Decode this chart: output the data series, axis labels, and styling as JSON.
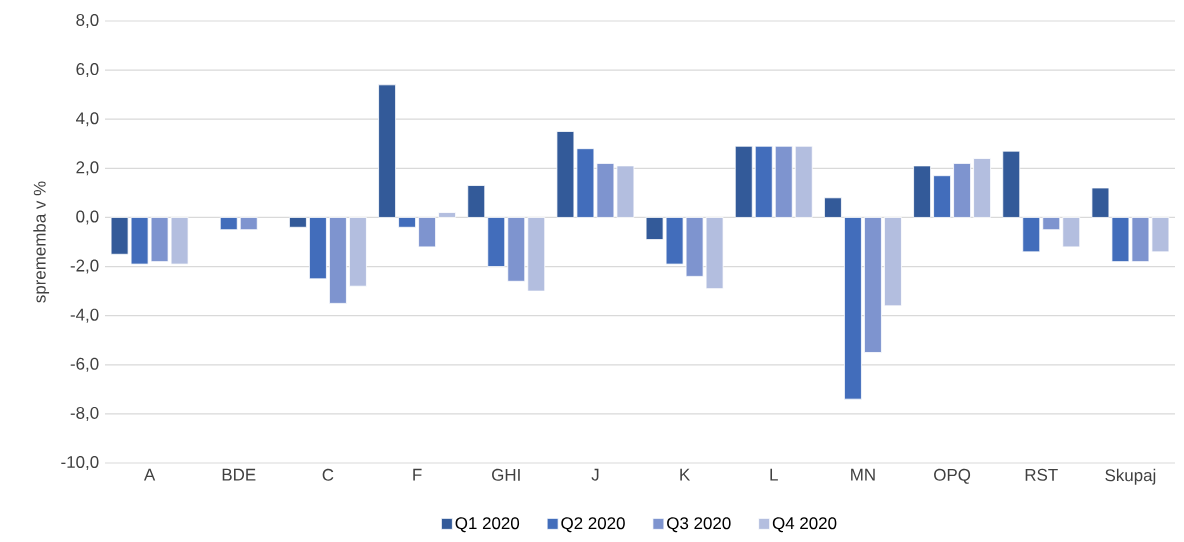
{
  "chart_data": {
    "type": "bar",
    "ylabel": "sprememba v %",
    "categories": [
      "A",
      "BDE",
      "C",
      "F",
      "GHI",
      "J",
      "K",
      "L",
      "MN",
      "OPQ",
      "RST",
      "Skupaj"
    ],
    "series": [
      {
        "name": "Q1 2020",
        "color": "#335a99",
        "values": [
          -1.5,
          null,
          -0.4,
          5.4,
          1.3,
          3.5,
          -0.9,
          2.9,
          0.8,
          2.1,
          2.7,
          1.2
        ]
      },
      {
        "name": "Q2 2020",
        "color": "#426dbb",
        "values": [
          -1.9,
          -0.5,
          -2.5,
          -0.4,
          -2.0,
          2.8,
          -1.9,
          2.9,
          -7.4,
          1.7,
          -1.4,
          -1.8
        ]
      },
      {
        "name": "Q3 2020",
        "color": "#7e94cf",
        "values": [
          -1.8,
          -0.5,
          -3.5,
          -1.2,
          -2.6,
          2.2,
          -2.4,
          2.9,
          -5.5,
          2.2,
          -0.5,
          -1.8
        ]
      },
      {
        "name": "Q4 2020",
        "color": "#b3bedf",
        "values": [
          -1.9,
          null,
          -2.8,
          0.2,
          -3.0,
          2.1,
          -2.9,
          2.9,
          -3.6,
          2.4,
          -1.2,
          -1.4
        ]
      }
    ],
    "ylim": [
      -10,
      8
    ],
    "yticks": [
      {
        "value": -10,
        "label": "-10,0"
      },
      {
        "value": -8,
        "label": "-8,0"
      },
      {
        "value": -6,
        "label": "-6,0"
      },
      {
        "value": -4,
        "label": "-4,0"
      },
      {
        "value": -2,
        "label": "-2,0"
      },
      {
        "value": 0,
        "label": "0,0"
      },
      {
        "value": 2,
        "label": "2,0"
      },
      {
        "value": 4,
        "label": "4,0"
      },
      {
        "value": 6,
        "label": "6,0"
      },
      {
        "value": 8,
        "label": "8,0"
      }
    ],
    "grid": "y",
    "legend": "bottom"
  }
}
